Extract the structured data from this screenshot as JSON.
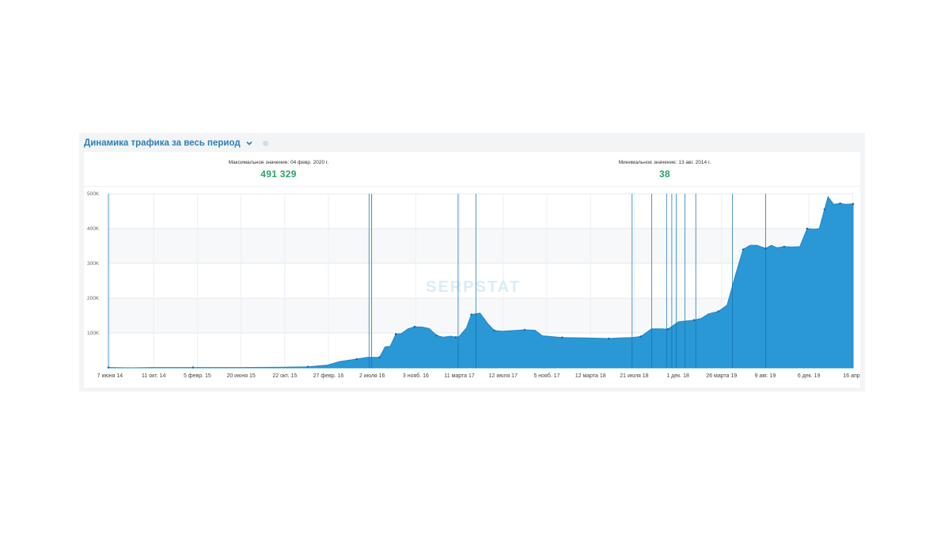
{
  "header": {
    "title": "Динамика трафика за весь период",
    "chevron_icon": "chevron-down-icon",
    "info_icon": "info-icon"
  },
  "stats": {
    "max_label": "Максимальное значение: 04 февр. 2020 г.",
    "max_value": "491 329",
    "min_label": "Минимальное значение: 13 авг. 2014 г.",
    "min_value": "38"
  },
  "watermark": "SERPSTAT",
  "colors": {
    "area": "#2b98d6",
    "accent": "#2a7fb8",
    "values": "#2aa36b",
    "markers": "#0f6fb0"
  },
  "chart_data": {
    "type": "area",
    "title": "",
    "xlabel": "",
    "ylabel": "",
    "ylim": [
      0,
      500000
    ],
    "y_ticks": [
      "500K",
      "400K",
      "300K",
      "200K",
      "100K"
    ],
    "x_ticks": [
      "7 июня 14",
      "11 окт. 14",
      "5 февр. 15",
      "20 июня 15",
      "22 окт. 15",
      "27 февр. 16",
      "2 июля 16",
      "3 нояб. 16",
      "11 марта 17",
      "12 июля 17",
      "5 нояб. 17",
      "12 марта 18",
      "21 июля 18",
      "1 дек. 18",
      "26 марта 19",
      "9 авг. 19",
      "6 дек. 19",
      "16 апр."
    ],
    "x_range": [
      "2014-06-07",
      "2020-04-16"
    ],
    "grid": true,
    "series": [
      {
        "x": [
          "2014-06-07",
          "2014-08-13",
          "2014-10-11",
          "2015-02-05",
          "2015-06-20",
          "2015-10-22",
          "2016-01-01",
          "2016-02-27",
          "2016-04-01",
          "2016-05-20",
          "2016-06-20",
          "2016-07-02",
          "2016-07-25",
          "2016-08-10",
          "2016-08-25",
          "2016-09-10",
          "2016-09-25",
          "2016-10-15",
          "2016-11-03",
          "2016-11-25",
          "2016-12-15",
          "2017-01-05",
          "2017-01-25",
          "2017-02-15",
          "2017-03-01",
          "2017-03-11",
          "2017-04-01",
          "2017-04-15",
          "2017-05-10",
          "2017-06-01",
          "2017-06-20",
          "2017-07-12",
          "2017-08-15",
          "2017-09-15",
          "2017-10-15",
          "2017-11-05",
          "2018-01-01",
          "2018-03-12",
          "2018-04-15",
          "2018-05-15",
          "2018-06-15",
          "2018-07-21",
          "2018-08-15",
          "2018-09-15",
          "2018-10-15",
          "2018-11-01",
          "2018-12-01",
          "2018-12-20",
          "2019-01-15",
          "2019-02-05",
          "2019-02-25",
          "2019-03-26",
          "2019-04-20",
          "2019-05-15",
          "2019-06-05",
          "2019-06-25",
          "2019-07-15",
          "2019-08-09",
          "2019-08-25",
          "2019-09-10",
          "2019-10-01",
          "2019-10-25",
          "2019-11-15",
          "2019-12-06",
          "2019-12-25",
          "2020-01-10",
          "2020-01-25",
          "2020-02-04",
          "2020-02-20",
          "2020-03-10",
          "2020-03-25",
          "2020-04-16"
        ],
        "values": [
          1000,
          38,
          1000,
          1000,
          1000,
          1500,
          3000,
          8000,
          18000,
          25000,
          30000,
          30000,
          30000,
          60000,
          62000,
          97000,
          98000,
          112000,
          118000,
          117000,
          113000,
          93000,
          88000,
          91000,
          88000,
          90000,
          115000,
          153000,
          157000,
          127000,
          107000,
          105000,
          107000,
          109000,
          108000,
          92000,
          87000,
          86000,
          85000,
          84000,
          86000,
          87000,
          90000,
          112000,
          112000,
          111000,
          132000,
          134000,
          137000,
          142000,
          155000,
          162000,
          180000,
          270000,
          340000,
          352000,
          352000,
          343000,
          352000,
          345000,
          348000,
          347000,
          348000,
          400000,
          398000,
          400000,
          455000,
          491329,
          470000,
          472000,
          470000,
          471000
        ]
      }
    ]
  }
}
